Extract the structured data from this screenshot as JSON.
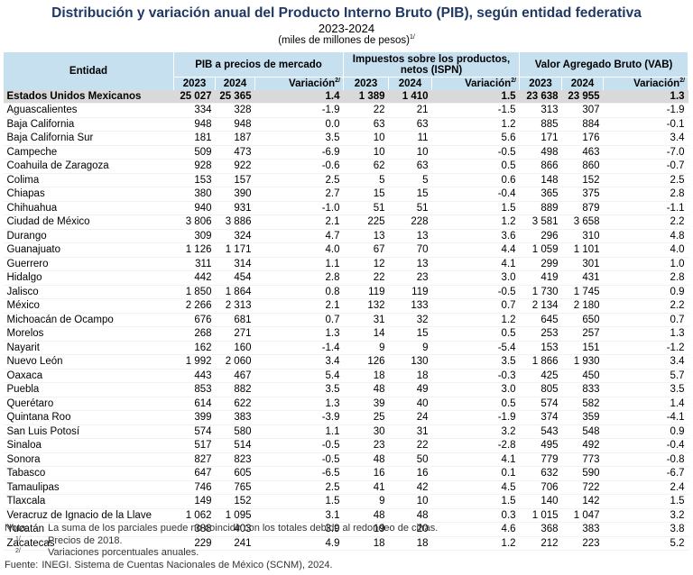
{
  "header": {
    "title": "Distribución y variación anual del Producto Interno Bruto (PIB), según entidad federativa",
    "subtitle": "2023-2024",
    "units": "(miles de millones de pesos)",
    "units_sup": "1/"
  },
  "table": {
    "header": {
      "entidad": "Entidad",
      "groups": [
        {
          "title": "PIB a precios de mercado",
          "columns": [
            {
              "text": "2023"
            },
            {
              "text": "2024"
            },
            {
              "text": "Variación",
              "sup": "2/"
            }
          ]
        },
        {
          "title": "Impuestos sobre los productos, netos (ISPN)",
          "columns": [
            {
              "text": "2023"
            },
            {
              "text": "2024"
            },
            {
              "text": "Variación",
              "sup": "2/"
            }
          ]
        },
        {
          "title": "Valor Agregado Bruto (VAB)",
          "columns": [
            {
              "text": "2023"
            },
            {
              "text": "2024"
            },
            {
              "text": "Variación",
              "sup": "2/"
            }
          ]
        }
      ]
    },
    "total": [
      "Estados Unidos Mexicanos",
      "25 027",
      "25 365",
      "1.4",
      "1 389",
      "1 410",
      "1.5",
      "23 638",
      "23 955",
      "1.3"
    ],
    "rows": [
      [
        "Aguascalientes",
        "334",
        "328",
        "-1.9",
        "22",
        "21",
        "-1.5",
        "313",
        "307",
        "-1.9"
      ],
      [
        "Baja California",
        "948",
        "948",
        "0.0",
        "63",
        "63",
        "1.2",
        "885",
        "884",
        "-0.1"
      ],
      [
        "Baja California Sur",
        "181",
        "187",
        "3.5",
        "10",
        "11",
        "5.6",
        "171",
        "176",
        "3.4"
      ],
      [
        "Campeche",
        "509",
        "473",
        "-6.9",
        "10",
        "10",
        "-0.5",
        "498",
        "463",
        "-7.0"
      ],
      [
        "Coahuila de Zaragoza",
        "928",
        "922",
        "-0.6",
        "62",
        "63",
        "0.5",
        "866",
        "860",
        "-0.7"
      ],
      [
        "Colima",
        "153",
        "157",
        "2.5",
        "5",
        "5",
        "0.6",
        "148",
        "152",
        "2.5"
      ],
      [
        "Chiapas",
        "380",
        "390",
        "2.7",
        "15",
        "15",
        "-0.4",
        "365",
        "375",
        "2.8"
      ],
      [
        "Chihuahua",
        "940",
        "931",
        "-1.0",
        "51",
        "51",
        "1.5",
        "889",
        "879",
        "-1.1"
      ],
      [
        "Ciudad de México",
        "3 806",
        "3 886",
        "2.1",
        "225",
        "228",
        "1.2",
        "3 581",
        "3 658",
        "2.2"
      ],
      [
        "Durango",
        "309",
        "324",
        "4.7",
        "13",
        "13",
        "3.6",
        "296",
        "310",
        "4.8"
      ],
      [
        "Guanajuato",
        "1 126",
        "1 171",
        "4.0",
        "67",
        "70",
        "4.4",
        "1 059",
        "1 101",
        "4.0"
      ],
      [
        "Guerrero",
        "311",
        "314",
        "1.1",
        "12",
        "13",
        "4.1",
        "299",
        "301",
        "1.0"
      ],
      [
        "Hidalgo",
        "442",
        "454",
        "2.8",
        "22",
        "23",
        "3.0",
        "419",
        "431",
        "2.8"
      ],
      [
        "Jalisco",
        "1 850",
        "1 864",
        "0.8",
        "119",
        "119",
        "-0.5",
        "1 730",
        "1 745",
        "0.9"
      ],
      [
        "México",
        "2 266",
        "2 313",
        "2.1",
        "132",
        "133",
        "0.7",
        "2 134",
        "2 180",
        "2.2"
      ],
      [
        "Michoacán de Ocampo",
        "676",
        "681",
        "0.7",
        "31",
        "32",
        "1.2",
        "645",
        "650",
        "0.7"
      ],
      [
        "Morelos",
        "268",
        "271",
        "1.3",
        "14",
        "15",
        "0.5",
        "253",
        "257",
        "1.3"
      ],
      [
        "Nayarit",
        "162",
        "160",
        "-1.4",
        "9",
        "9",
        "-5.4",
        "153",
        "151",
        "-1.2"
      ],
      [
        "Nuevo León",
        "1 992",
        "2 060",
        "3.4",
        "126",
        "130",
        "3.5",
        "1 866",
        "1 930",
        "3.4"
      ],
      [
        "Oaxaca",
        "443",
        "467",
        "5.4",
        "18",
        "18",
        "-0.3",
        "425",
        "450",
        "5.7"
      ],
      [
        "Puebla",
        "853",
        "882",
        "3.5",
        "48",
        "49",
        "3.0",
        "805",
        "833",
        "3.5"
      ],
      [
        "Querétaro",
        "614",
        "622",
        "1.3",
        "39",
        "40",
        "0.5",
        "574",
        "582",
        "1.4"
      ],
      [
        "Quintana Roo",
        "399",
        "383",
        "-3.9",
        "25",
        "24",
        "-1.9",
        "374",
        "359",
        "-4.1"
      ],
      [
        "San Luis Potosí",
        "574",
        "580",
        "1.1",
        "30",
        "31",
        "3.2",
        "543",
        "548",
        "0.9"
      ],
      [
        "Sinaloa",
        "517",
        "514",
        "-0.5",
        "23",
        "22",
        "-2.8",
        "495",
        "492",
        "-0.4"
      ],
      [
        "Sonora",
        "827",
        "823",
        "-0.5",
        "48",
        "50",
        "4.1",
        "779",
        "773",
        "-0.8"
      ],
      [
        "Tabasco",
        "647",
        "605",
        "-6.5",
        "16",
        "16",
        "0.1",
        "632",
        "590",
        "-6.7"
      ],
      [
        "Tamaulipas",
        "746",
        "765",
        "2.5",
        "41",
        "42",
        "4.5",
        "706",
        "722",
        "2.4"
      ],
      [
        "Tlaxcala",
        "149",
        "152",
        "1.5",
        "9",
        "10",
        "1.5",
        "140",
        "142",
        "1.5"
      ],
      [
        "Veracruz de Ignacio de la Llave",
        "1 062",
        "1 095",
        "3.1",
        "48",
        "48",
        "0.3",
        "1 015",
        "1 047",
        "3.2"
      ],
      [
        "Yucatán",
        "388",
        "403",
        "3.9",
        "19",
        "20",
        "4.6",
        "368",
        "383",
        "3.8"
      ],
      [
        "Zacatecas",
        "229",
        "241",
        "4.9",
        "18",
        "18",
        "1.2",
        "212",
        "223",
        "5.2"
      ]
    ]
  },
  "notes": [
    {
      "label": "Nota:",
      "text": "La suma de los parciales puede no coincidir con los totales debido al redondeo de cifras."
    },
    {
      "label": "1/",
      "text": "Precios de 2018."
    },
    {
      "label": "2/",
      "text": "Variaciones porcentuales anuales."
    }
  ],
  "source": {
    "label": "Fuente:",
    "text": "INEGI. Sistema de Cuentas Nacionales de México (SCNM), 2024."
  }
}
